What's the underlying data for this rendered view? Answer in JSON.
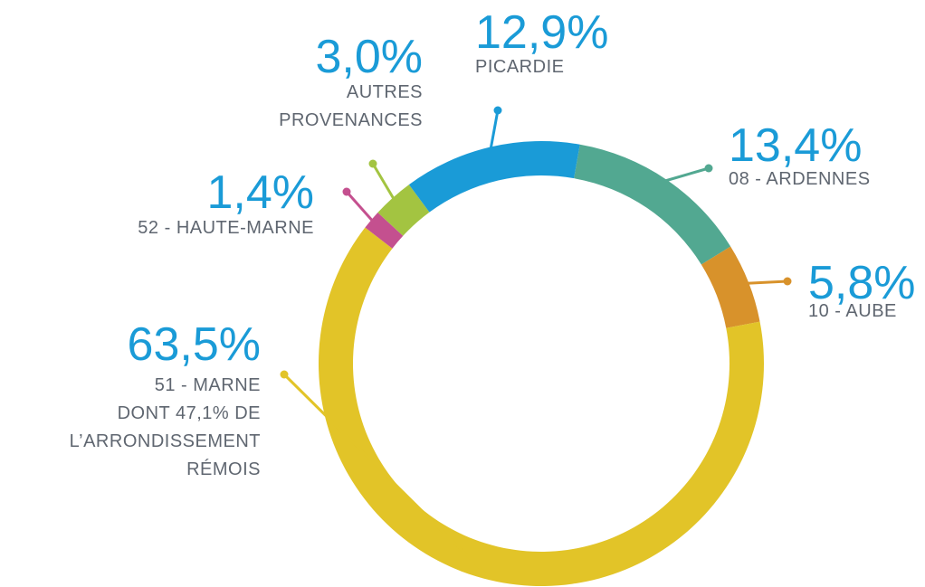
{
  "chart_data": {
    "type": "donut",
    "categories": [
      [
        "08 - ARDENNES"
      ],
      [
        "10 - AUBE"
      ],
      [
        "51 - MARNE",
        "DONT  47,1% DE",
        "L’ARRONDISSEMENT",
        "RÉMOIS"
      ],
      [
        "52 - HAUTE-MARNE"
      ],
      [
        "AUTRES",
        "PROVENANCES"
      ],
      [
        "PICARDIE"
      ]
    ],
    "values": [
      13.4,
      5.8,
      63.5,
      1.4,
      3.0,
      12.9
    ],
    "value_labels": [
      "13,4%",
      "5,8%",
      "63,5%",
      "1,4%",
      "3,0%",
      "12,9%"
    ],
    "colors": [
      "#52a891",
      "#d8922b",
      "#e2c428",
      "#c4508f",
      "#a3c441",
      "#1a9bd7"
    ]
  }
}
